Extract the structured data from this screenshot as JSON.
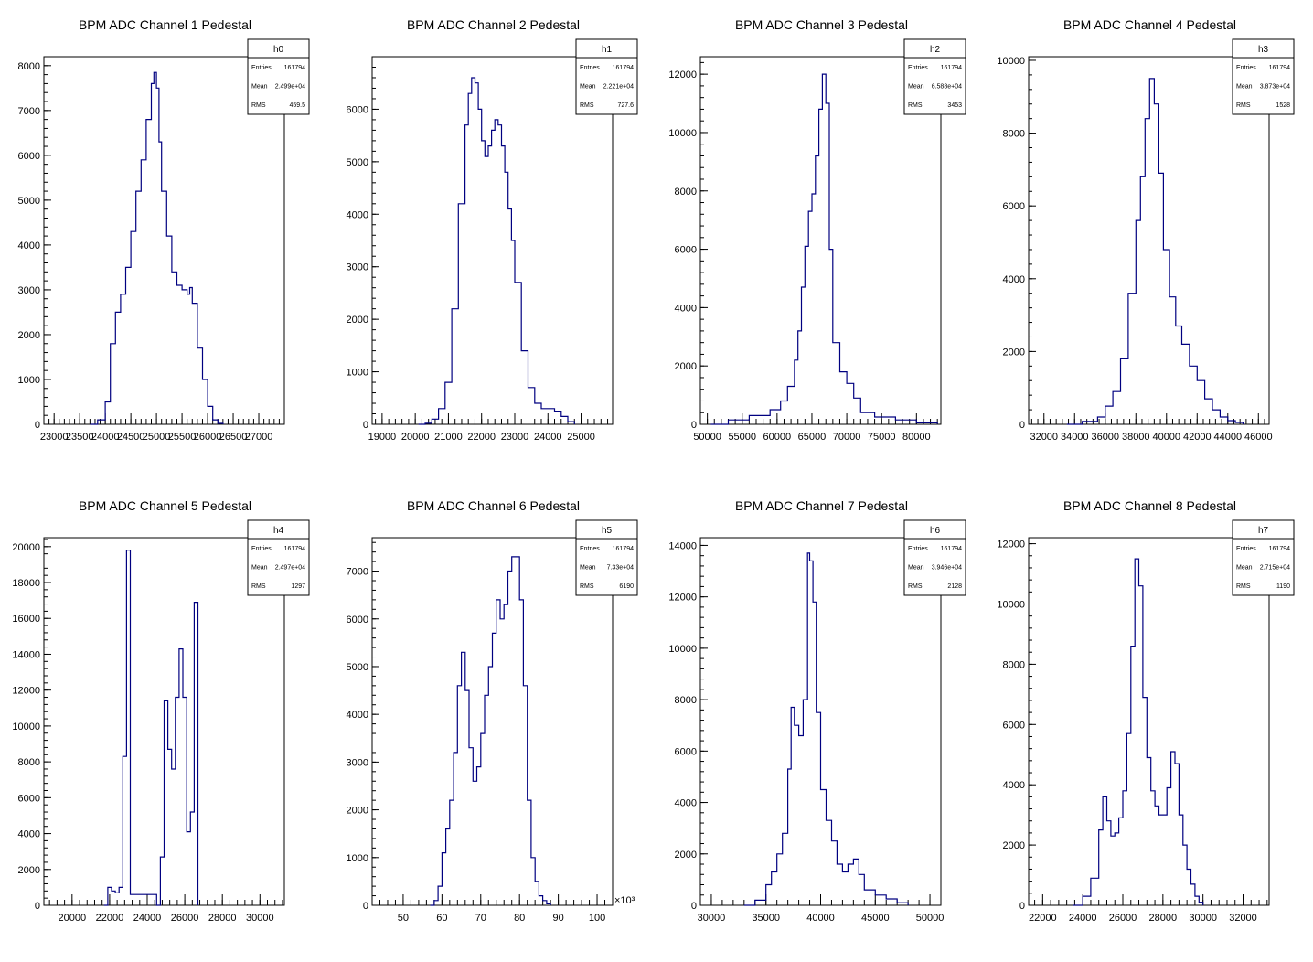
{
  "chart_data": [
    {
      "type": "histogram",
      "title": "BPM ADC Channel 1 Pedestal",
      "stats": {
        "name": "h0",
        "rows": [
          [
            "Entries",
            "161794"
          ],
          [
            "Mean",
            "2.499e+04"
          ],
          [
            "RMS",
            "459.5"
          ]
        ]
      },
      "xlim": [
        22800,
        27500
      ],
      "ylim": [
        0,
        8200
      ],
      "xticks": [
        23000,
        23500,
        24000,
        24500,
        25000,
        25500,
        26000,
        26500,
        27000
      ],
      "yticks": [
        0,
        1000,
        2000,
        3000,
        4000,
        5000,
        6000,
        7000,
        8000
      ],
      "x_exponent": "",
      "hist_x": [
        23700,
        23850,
        24000,
        24100,
        24200,
        24300,
        24400,
        24500,
        24600,
        24700,
        24800,
        24900,
        24950,
        25000,
        25050,
        25100,
        25200,
        25300,
        25400,
        25500,
        25600,
        25650,
        25700,
        25800,
        25900,
        26000,
        26100,
        26200,
        26300
      ],
      "hist_y": [
        0,
        100,
        500,
        1800,
        2500,
        2900,
        3500,
        4300,
        5200,
        5900,
        6800,
        7600,
        7850,
        7500,
        6300,
        5200,
        4200,
        3400,
        3100,
        3000,
        2900,
        3050,
        2700,
        1700,
        1000,
        400,
        100,
        20,
        0
      ]
    },
    {
      "type": "histogram",
      "title": "BPM ADC Channel 2 Pedestal",
      "stats": {
        "name": "h1",
        "rows": [
          [
            "Entries",
            "161794"
          ],
          [
            "Mean",
            "2.221e+04"
          ],
          [
            "RMS",
            "727.6"
          ]
        ]
      },
      "xlim": [
        18700,
        25950
      ],
      "ylim": [
        0,
        7000
      ],
      "xticks": [
        19000,
        20000,
        21000,
        22000,
        23000,
        24000,
        25000
      ],
      "yticks": [
        0,
        1000,
        2000,
        3000,
        4000,
        5000,
        6000
      ],
      "x_exponent": "",
      "hist_x": [
        20100,
        20300,
        20500,
        20700,
        20900,
        21100,
        21300,
        21500,
        21600,
        21700,
        21800,
        21900,
        22000,
        22100,
        22200,
        22300,
        22400,
        22500,
        22600,
        22700,
        22800,
        22900,
        23000,
        23200,
        23400,
        23600,
        23800,
        24000,
        24200,
        24400,
        24600,
        24800
      ],
      "hist_y": [
        0,
        20,
        100,
        300,
        800,
        2200,
        4200,
        5700,
        6300,
        6600,
        6500,
        6000,
        5400,
        5100,
        5300,
        5600,
        5800,
        5700,
        5300,
        4800,
        4100,
        3500,
        2700,
        1400,
        700,
        400,
        300,
        300,
        250,
        150,
        50,
        0
      ]
    },
    {
      "type": "histogram",
      "title": "BPM ADC Channel 3 Pedestal",
      "stats": {
        "name": "h2",
        "rows": [
          [
            "Entries",
            "161794"
          ],
          [
            "Mean",
            "6.588e+04"
          ],
          [
            "RMS",
            "3453"
          ]
        ]
      },
      "xlim": [
        49000,
        83500
      ],
      "ylim": [
        0,
        12600
      ],
      "xticks": [
        50000,
        55000,
        60000,
        65000,
        70000,
        75000,
        80000
      ],
      "yticks": [
        0,
        2000,
        4000,
        6000,
        8000,
        10000,
        12000
      ],
      "x_exponent": "",
      "hist_x": [
        50500,
        53000,
        56000,
        59000,
        60500,
        61500,
        62500,
        63000,
        63500,
        64000,
        64500,
        65000,
        65500,
        66000,
        66500,
        67000,
        67500,
        68000,
        69000,
        70000,
        71000,
        72000,
        74000,
        77000,
        80000,
        83000
      ],
      "hist_y": [
        0,
        150,
        300,
        500,
        800,
        1300,
        2200,
        3200,
        4700,
        6100,
        7300,
        7900,
        9200,
        10800,
        12000,
        11000,
        6000,
        2800,
        1800,
        1400,
        900,
        400,
        250,
        150,
        50,
        10
      ]
    },
    {
      "type": "histogram",
      "title": "BPM ADC Channel 4 Pedestal",
      "stats": {
        "name": "h3",
        "rows": [
          [
            "Entries",
            "161794"
          ],
          [
            "Mean",
            "3.873e+04"
          ],
          [
            "RMS",
            "1528"
          ]
        ]
      },
      "xlim": [
        31000,
        46700
      ],
      "ylim": [
        0,
        10100
      ],
      "xticks": [
        32000,
        34000,
        36000,
        38000,
        40000,
        42000,
        44000,
        46000
      ],
      "yticks": [
        0,
        2000,
        4000,
        6000,
        8000,
        10000
      ],
      "x_exponent": "",
      "hist_x": [
        33500,
        34500,
        35500,
        36000,
        36500,
        37000,
        37500,
        38000,
        38300,
        38600,
        38900,
        39200,
        39500,
        39800,
        40200,
        40600,
        41000,
        41500,
        42000,
        42500,
        43000,
        43500,
        44000,
        44500,
        45000
      ],
      "hist_y": [
        0,
        80,
        200,
        500,
        900,
        1800,
        3600,
        5600,
        6800,
        8400,
        9500,
        8800,
        6900,
        4800,
        3500,
        2700,
        2200,
        1600,
        1200,
        700,
        400,
        200,
        100,
        50,
        0
      ]
    },
    {
      "type": "histogram",
      "title": "BPM ADC Channel 5 Pedestal",
      "stats": {
        "name": "h4",
        "rows": [
          [
            "Entries",
            "161794"
          ],
          [
            "Mean",
            "2.497e+04"
          ],
          [
            "RMS",
            "1297"
          ]
        ]
      },
      "xlim": [
        18500,
        31300
      ],
      "ylim": [
        0,
        20500
      ],
      "xticks": [
        20000,
        22000,
        24000,
        26000,
        28000,
        30000
      ],
      "yticks": [
        0,
        2000,
        4000,
        6000,
        8000,
        10000,
        12000,
        14000,
        16000,
        18000,
        20000
      ],
      "x_exponent": "",
      "hist_x": [
        21700,
        21900,
        22100,
        22300,
        22500,
        22700,
        22900,
        23100,
        24500,
        24700,
        24900,
        25100,
        25300,
        25500,
        25700,
        25900,
        26100,
        26300,
        26500,
        26700
      ],
      "hist_y": [
        0,
        1000,
        800,
        700,
        1000,
        8300,
        19800,
        600,
        0,
        2700,
        11400,
        8700,
        7600,
        11600,
        14300,
        11600,
        4100,
        5200,
        16900,
        0
      ]
    },
    {
      "type": "histogram",
      "title": "BPM ADC Channel 6 Pedestal",
      "stats": {
        "name": "h5",
        "rows": [
          [
            "Entries",
            "161794"
          ],
          [
            "Mean",
            "7.33e+04"
          ],
          [
            "RMS",
            "6190"
          ]
        ]
      },
      "xlim": [
        42,
        104
      ],
      "ylim": [
        0,
        7700
      ],
      "xticks": [
        50,
        60,
        70,
        80,
        90,
        100
      ],
      "yticks": [
        0,
        1000,
        2000,
        3000,
        4000,
        5000,
        6000,
        7000
      ],
      "x_exponent": "×10³",
      "hist_x": [
        57,
        58,
        59,
        60,
        61,
        62,
        63,
        64,
        65,
        66,
        67,
        68,
        69,
        70,
        71,
        72,
        73,
        74,
        75,
        76,
        77,
        78,
        79,
        80,
        81,
        82,
        83,
        84,
        85,
        86,
        87,
        88
      ],
      "hist_y": [
        0,
        100,
        400,
        1100,
        1600,
        2200,
        3200,
        4600,
        5300,
        4500,
        3300,
        2600,
        2900,
        3600,
        4400,
        5000,
        5700,
        6400,
        6000,
        6300,
        7000,
        7300,
        7300,
        6400,
        4600,
        2200,
        1000,
        500,
        200,
        100,
        30,
        0
      ]
    },
    {
      "type": "histogram",
      "title": "BPM ADC Channel 7 Pedestal",
      "stats": {
        "name": "h6",
        "rows": [
          [
            "Entries",
            "161794"
          ],
          [
            "Mean",
            "3.946e+04"
          ],
          [
            "RMS",
            "2128"
          ]
        ]
      },
      "xlim": [
        29000,
        51000
      ],
      "ylim": [
        0,
        14300
      ],
      "xticks": [
        30000,
        35000,
        40000,
        45000,
        50000
      ],
      "yticks": [
        0,
        2000,
        4000,
        6000,
        8000,
        10000,
        12000,
        14000
      ],
      "x_exponent": "",
      "hist_x": [
        33000,
        34000,
        35000,
        35500,
        36000,
        36500,
        37000,
        37300,
        37600,
        38000,
        38400,
        38800,
        39000,
        39300,
        39600,
        40000,
        40500,
        41000,
        41500,
        42000,
        42500,
        43000,
        43500,
        44000,
        45000,
        46000,
        47000,
        48000
      ],
      "hist_y": [
        0,
        200,
        800,
        1300,
        2000,
        2800,
        5300,
        7700,
        7000,
        6600,
        8000,
        13700,
        13400,
        11800,
        7500,
        4500,
        3300,
        2500,
        1600,
        1300,
        1600,
        1800,
        1200,
        600,
        400,
        250,
        100,
        0
      ]
    },
    {
      "type": "histogram",
      "title": "BPM ADC Channel 8 Pedestal",
      "stats": {
        "name": "h7",
        "rows": [
          [
            "Entries",
            "161794"
          ],
          [
            "Mean",
            "2.715e+04"
          ],
          [
            "RMS",
            "1190"
          ]
        ]
      },
      "xlim": [
        21300,
        33300
      ],
      "ylim": [
        0,
        12200
      ],
      "xticks": [
        22000,
        24000,
        26000,
        28000,
        30000,
        32000
      ],
      "yticks": [
        0,
        2000,
        4000,
        6000,
        8000,
        10000,
        12000
      ],
      "x_exponent": "",
      "hist_x": [
        23500,
        24000,
        24400,
        24800,
        25000,
        25200,
        25400,
        25600,
        25800,
        26000,
        26200,
        26400,
        26600,
        26800,
        27000,
        27200,
        27400,
        27600,
        27800,
        28000,
        28200,
        28400,
        28600,
        28800,
        29000,
        29200,
        29400,
        29600,
        29800,
        30000
      ],
      "hist_y": [
        0,
        300,
        900,
        2500,
        3600,
        2800,
        2300,
        2400,
        2900,
        3800,
        5700,
        8600,
        11500,
        10600,
        6900,
        4900,
        3800,
        3300,
        3000,
        3000,
        3900,
        5100,
        4700,
        3000,
        2000,
        1200,
        700,
        300,
        100,
        0
      ]
    }
  ]
}
